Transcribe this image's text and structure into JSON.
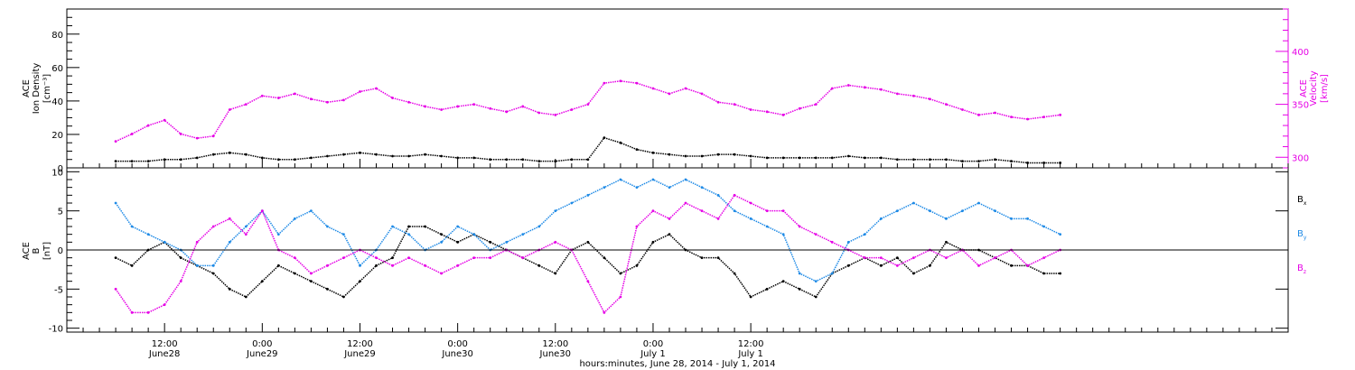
{
  "chart_data": [
    {
      "type": "scatter",
      "ylabel_left_lines": [
        "ACE",
        "Ion Density",
        "[cm⁻³]"
      ],
      "ylabel_right_lines": [
        "ACE",
        "Velocity",
        "[km/s]"
      ],
      "ylim_left": [
        0,
        95
      ],
      "ylim_right": [
        290,
        440
      ],
      "left_ticks": [
        0,
        20,
        40,
        60,
        80
      ],
      "right_ticks": [
        300,
        350,
        400
      ],
      "grid": false,
      "colors": {
        "density": "#000000",
        "velocity": "#e600e6"
      },
      "series": [
        {
          "axis": "left",
          "x": [
            6,
            8,
            10,
            12,
            14,
            16,
            18,
            20,
            22,
            24,
            26,
            28,
            30,
            32,
            34,
            36,
            38,
            40,
            42,
            44,
            46,
            48,
            50,
            52,
            54,
            56,
            58,
            60,
            62,
            64,
            66,
            68,
            70,
            72,
            74,
            76,
            78,
            80,
            82,
            84,
            86,
            88,
            90,
            92,
            94,
            96,
            98,
            100,
            102,
            104,
            106,
            108,
            110,
            112,
            114,
            116,
            118,
            120,
            122
          ],
          "values": [
            4,
            4,
            4,
            5,
            5,
            6,
            8,
            9,
            8,
            6,
            5,
            5,
            6,
            7,
            8,
            9,
            8,
            7,
            7,
            8,
            7,
            6,
            6,
            5,
            5,
            5,
            4,
            4,
            5,
            5,
            18,
            15,
            11,
            9,
            8,
            7,
            7,
            8,
            8,
            7,
            6,
            6,
            6,
            6,
            6,
            7,
            6,
            6,
            5,
            5,
            5,
            5,
            4,
            4,
            5,
            4,
            3,
            3,
            3
          ]
        },
        {
          "axis": "right",
          "x": [
            6,
            8,
            10,
            12,
            14,
            16,
            18,
            20,
            22,
            24,
            26,
            28,
            30,
            32,
            34,
            36,
            38,
            40,
            42,
            44,
            46,
            48,
            50,
            52,
            54,
            56,
            58,
            60,
            62,
            64,
            66,
            68,
            70,
            72,
            74,
            76,
            78,
            80,
            82,
            84,
            86,
            88,
            90,
            92,
            94,
            96,
            98,
            100,
            102,
            104,
            106,
            108,
            110,
            112,
            114,
            116,
            118,
            120,
            122
          ],
          "values": [
            315,
            322,
            330,
            335,
            322,
            318,
            320,
            345,
            350,
            358,
            356,
            360,
            355,
            352,
            354,
            362,
            365,
            356,
            352,
            348,
            345,
            348,
            350,
            346,
            343,
            348,
            342,
            340,
            345,
            350,
            370,
            372,
            370,
            365,
            360,
            365,
            360,
            352,
            350,
            345,
            343,
            340,
            346,
            350,
            365,
            368,
            366,
            364,
            360,
            358,
            355,
            350,
            345,
            340,
            342,
            338,
            336,
            338,
            340
          ]
        }
      ]
    },
    {
      "type": "scatter",
      "ylabel_left_lines": [
        "ACE",
        "B",
        "[nT]"
      ],
      "ylim": [
        -10.5,
        10.5
      ],
      "left_ticks": [
        -10,
        -5,
        0,
        5,
        10
      ],
      "zero_line": true,
      "grid": false,
      "legend": [
        {
          "name": "B",
          "sub": "x",
          "color": "#000000"
        },
        {
          "name": "B",
          "sub": "y",
          "color": "#1e8ae6"
        },
        {
          "name": "B",
          "sub": "z",
          "color": "#e600e6"
        }
      ],
      "legend_position": "right",
      "series": [
        {
          "sub": "x",
          "x": [
            6,
            8,
            10,
            12,
            14,
            16,
            18,
            20,
            22,
            24,
            26,
            28,
            30,
            32,
            34,
            36,
            38,
            40,
            42,
            44,
            46,
            48,
            50,
            52,
            54,
            56,
            58,
            60,
            62,
            64,
            66,
            68,
            70,
            72,
            74,
            76,
            78,
            80,
            82,
            84,
            86,
            88,
            90,
            92,
            94,
            96,
            98,
            100,
            102,
            104,
            106,
            108,
            110,
            112,
            114,
            116,
            118,
            120,
            122
          ],
          "values": [
            -1,
            -2,
            0,
            1,
            -1,
            -2,
            -3,
            -5,
            -6,
            -4,
            -2,
            -3,
            -4,
            -5,
            -6,
            -4,
            -2,
            -1,
            3,
            3,
            2,
            1,
            2,
            1,
            0,
            -1,
            -2,
            -3,
            0,
            1,
            -1,
            -3,
            -2,
            1,
            2,
            0,
            -1,
            -1,
            -3,
            -6,
            -5,
            -4,
            -5,
            -6,
            -3,
            -2,
            -1,
            -2,
            -1,
            -3,
            -2,
            1,
            0,
            0,
            -1,
            -2,
            -2,
            -3,
            -3
          ]
        },
        {
          "sub": "y",
          "x": [
            6,
            8,
            10,
            12,
            14,
            16,
            18,
            20,
            22,
            24,
            26,
            28,
            30,
            32,
            34,
            36,
            38,
            40,
            42,
            44,
            46,
            48,
            50,
            52,
            54,
            56,
            58,
            60,
            62,
            64,
            66,
            68,
            70,
            72,
            74,
            76,
            78,
            80,
            82,
            84,
            86,
            88,
            90,
            92,
            94,
            96,
            98,
            100,
            102,
            104,
            106,
            108,
            110,
            112,
            114,
            116,
            118,
            120,
            122
          ],
          "values": [
            6,
            3,
            2,
            1,
            0,
            -2,
            -2,
            1,
            3,
            5,
            2,
            4,
            5,
            3,
            2,
            -2,
            0,
            3,
            2,
            0,
            1,
            3,
            2,
            0,
            1,
            2,
            3,
            5,
            6,
            7,
            8,
            9,
            8,
            9,
            8,
            9,
            8,
            7,
            5,
            4,
            3,
            2,
            -3,
            -4,
            -3,
            1,
            2,
            4,
            5,
            6,
            5,
            4,
            5,
            6,
            5,
            4,
            4,
            3,
            2
          ]
        },
        {
          "sub": "z",
          "x": [
            6,
            8,
            10,
            12,
            14,
            16,
            18,
            20,
            22,
            24,
            26,
            28,
            30,
            32,
            34,
            36,
            38,
            40,
            42,
            44,
            46,
            48,
            50,
            52,
            54,
            56,
            58,
            60,
            62,
            64,
            66,
            68,
            70,
            72,
            74,
            76,
            78,
            80,
            82,
            84,
            86,
            88,
            90,
            92,
            94,
            96,
            98,
            100,
            102,
            104,
            106,
            108,
            110,
            112,
            114,
            116,
            118,
            120,
            122
          ],
          "values": [
            -5,
            -8,
            -8,
            -7,
            -4,
            1,
            3,
            4,
            2,
            5,
            0,
            -1,
            -3,
            -2,
            -1,
            0,
            -1,
            -2,
            -1,
            -2,
            -3,
            -2,
            -1,
            -1,
            0,
            -1,
            0,
            1,
            0,
            -4,
            -8,
            -6,
            3,
            5,
            4,
            6,
            5,
            4,
            7,
            6,
            5,
            5,
            3,
            2,
            1,
            0,
            -1,
            -1,
            -2,
            -1,
            0,
            -1,
            0,
            -2,
            -1,
            0,
            -2,
            -1,
            0
          ]
        }
      ]
    }
  ],
  "x_axis": {
    "range_hours": [
      0,
      150
    ],
    "ticks": [
      {
        "hour": 12,
        "time": "12:00",
        "date": "June28"
      },
      {
        "hour": 24,
        "time": "0:00",
        "date": "June29"
      },
      {
        "hour": 36,
        "time": "12:00",
        "date": "June29"
      },
      {
        "hour": 48,
        "time": "0:00",
        "date": "June30"
      },
      {
        "hour": 60,
        "time": "12:00",
        "date": "June30"
      },
      {
        "hour": 72,
        "time": "0:00",
        "date": "July 1"
      },
      {
        "hour": 84,
        "time": "12:00",
        "date": "July 1"
      }
    ],
    "xlabel": "hours:minutes, June 28, 2014 - July  1, 2014"
  }
}
